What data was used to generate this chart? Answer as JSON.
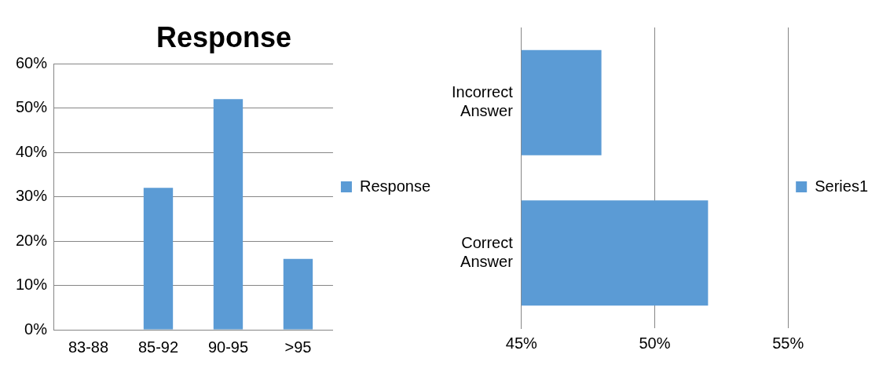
{
  "chart_data": [
    {
      "type": "bar",
      "title": "Response",
      "categories": [
        "83-88",
        "85-92",
        "90-95",
        ">95"
      ],
      "series": [
        {
          "name": "Response",
          "color": "#5b9bd5",
          "values": [
            0,
            32,
            52,
            16
          ]
        }
      ],
      "ylim": [
        0,
        60
      ],
      "yticks": [
        {
          "value": 0,
          "label": "0%"
        },
        {
          "value": 10,
          "label": "10%"
        },
        {
          "value": 20,
          "label": "20%"
        },
        {
          "value": 30,
          "label": "30%"
        },
        {
          "value": 40,
          "label": "40%"
        },
        {
          "value": 50,
          "label": "50%"
        },
        {
          "value": 60,
          "label": "60%"
        }
      ],
      "grid": "y",
      "legend": "right"
    },
    {
      "type": "bar",
      "orientation": "horizontal",
      "categories": [
        "Incorrect Answer",
        "Correct Answer"
      ],
      "series": [
        {
          "name": "Series1",
          "color": "#5b9bd5",
          "values": [
            48,
            52
          ]
        }
      ],
      "xlim": [
        45,
        55
      ],
      "xticks": [
        {
          "value": 45,
          "label": "45%"
        },
        {
          "value": 50,
          "label": "50%"
        },
        {
          "value": 55,
          "label": "55%"
        }
      ],
      "grid": "x",
      "legend": "right"
    }
  ]
}
